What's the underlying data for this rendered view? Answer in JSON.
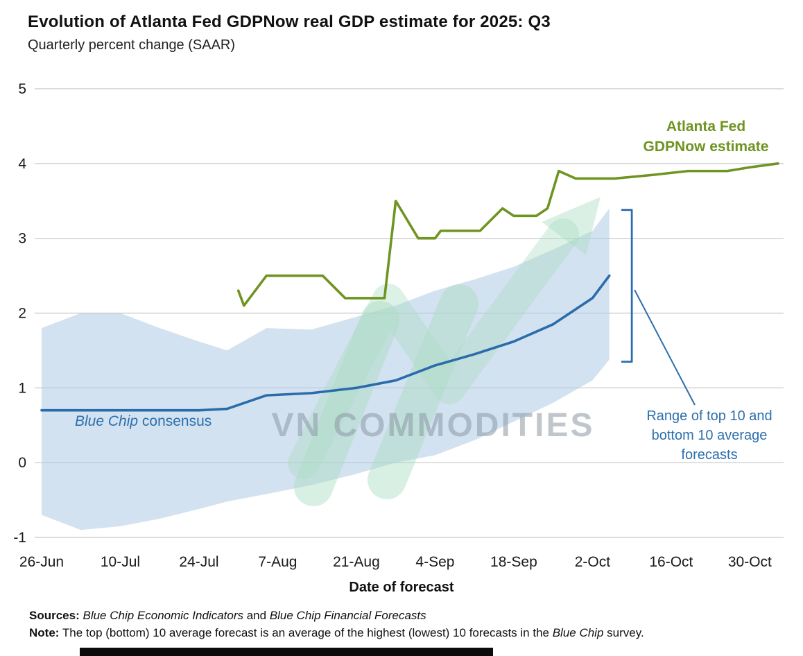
{
  "page": {
    "title": "Evolution of Atlanta Fed GDPNow real GDP estimate for 2025: Q3",
    "subtitle": "Quarterly percent change (SAAR)"
  },
  "chart_data": {
    "type": "line",
    "title": "Evolution of Atlanta Fed GDPNow real GDP estimate for 2025: Q3",
    "subtitle": "Quarterly percent change (SAAR)",
    "xlabel": "Date of forecast",
    "ylabel": "Quarterly percent change (SAAR)",
    "x_unit": "days since 26-Jun",
    "x_range": [
      0,
      132
    ],
    "y_range": [
      -1,
      5
    ],
    "y_ticks": [
      5,
      4,
      3,
      2,
      1,
      0,
      -1
    ],
    "x_ticks": [
      {
        "day": 0,
        "label": "26-Jun"
      },
      {
        "day": 14,
        "label": "10-Jul"
      },
      {
        "day": 28,
        "label": "24-Jul"
      },
      {
        "day": 42,
        "label": "7-Aug"
      },
      {
        "day": 56,
        "label": "21-Aug"
      },
      {
        "day": 70,
        "label": "4-Sep"
      },
      {
        "day": 84,
        "label": "18-Sep"
      },
      {
        "day": 98,
        "label": "2-Oct"
      },
      {
        "day": 112,
        "label": "16-Oct"
      },
      {
        "day": 126,
        "label": "30-Oct"
      }
    ],
    "grid": "horizontal-only",
    "legend_position": "annotated-inline",
    "series": {
      "gdpnow": {
        "name": "Atlanta Fed GDPNow estimate",
        "points": [
          [
            35,
            2.3
          ],
          [
            36,
            2.1
          ],
          [
            40,
            2.5
          ],
          [
            50,
            2.5
          ],
          [
            54,
            2.2
          ],
          [
            61,
            2.2
          ],
          [
            63,
            3.5
          ],
          [
            67,
            3.0
          ],
          [
            70,
            3.0
          ],
          [
            71,
            3.1
          ],
          [
            78,
            3.1
          ],
          [
            82,
            3.4
          ],
          [
            84,
            3.3
          ],
          [
            88,
            3.3
          ],
          [
            90,
            3.4
          ],
          [
            92,
            3.9
          ],
          [
            95,
            3.8
          ],
          [
            102,
            3.8
          ],
          [
            109,
            3.85
          ],
          [
            115,
            3.9
          ],
          [
            122,
            3.9
          ],
          [
            126,
            3.95
          ],
          [
            131,
            4.0
          ]
        ]
      },
      "blue_chip": {
        "name": "Blue Chip consensus",
        "points": [
          [
            0,
            0.7
          ],
          [
            14,
            0.7
          ],
          [
            28,
            0.7
          ],
          [
            33,
            0.72
          ],
          [
            40,
            0.9
          ],
          [
            48,
            0.93
          ],
          [
            56,
            1.0
          ],
          [
            63,
            1.1
          ],
          [
            70,
            1.3
          ],
          [
            77,
            1.45
          ],
          [
            84,
            1.62
          ],
          [
            91,
            1.85
          ],
          [
            98,
            2.2
          ],
          [
            101,
            2.5
          ]
        ]
      },
      "range_band": {
        "name": "Range of top 10 and bottom 10 average forecasts",
        "points": [
          [
            0,
            1.8,
            -0.7
          ],
          [
            7,
            2.0,
            -0.9
          ],
          [
            14,
            2.0,
            -0.85
          ],
          [
            21,
            1.8,
            -0.75
          ],
          [
            28,
            1.62,
            -0.62
          ],
          [
            33,
            1.5,
            -0.52
          ],
          [
            40,
            1.8,
            -0.42
          ],
          [
            48,
            1.78,
            -0.3
          ],
          [
            56,
            1.95,
            -0.15
          ],
          [
            63,
            2.1,
            0.0
          ],
          [
            70,
            2.3,
            0.1
          ],
          [
            77,
            2.45,
            0.3
          ],
          [
            84,
            2.62,
            0.55
          ],
          [
            91,
            2.85,
            0.8
          ],
          [
            98,
            3.1,
            1.1
          ],
          [
            101,
            3.4,
            1.38
          ]
        ]
      }
    },
    "annotations": {
      "bracket": {
        "day": 105,
        "top": 3.38,
        "bottom": 1.35
      },
      "leader_end": [
        1002,
        584
      ]
    },
    "colors": {
      "green": "#6f9421",
      "blue": "#2a6cab",
      "band": "#aecbe4",
      "grid": "#c6c6c6",
      "annotation_blue": "#2c6fad",
      "watermark_green": "#a9dcc0",
      "watermark_gray": "#8d99a4"
    }
  },
  "labels": {
    "atlanta_line1": "Atlanta Fed",
    "atlanta_line2": "GDPNow estimate",
    "bluechip_italic": "Blue Chip",
    "bluechip_rest": " consensus",
    "range_text": "Range of top 10 and\nbottom 10 average\nforecasts"
  },
  "watermark": {
    "text": "VN COMMODITIES"
  },
  "footer": {
    "sources_label": "Sources:",
    "sources_italic1": "Blue Chip Economic Indicators",
    "sources_and": " and ",
    "sources_italic2": "Blue Chip Financial Forecasts",
    "note_label": "Note:",
    "note_text1": " The top (bottom) 10 average forecast is an average of the highest (lowest) 10 forecasts in the ",
    "note_italic": "Blue Chip",
    "note_text2": " survey."
  }
}
